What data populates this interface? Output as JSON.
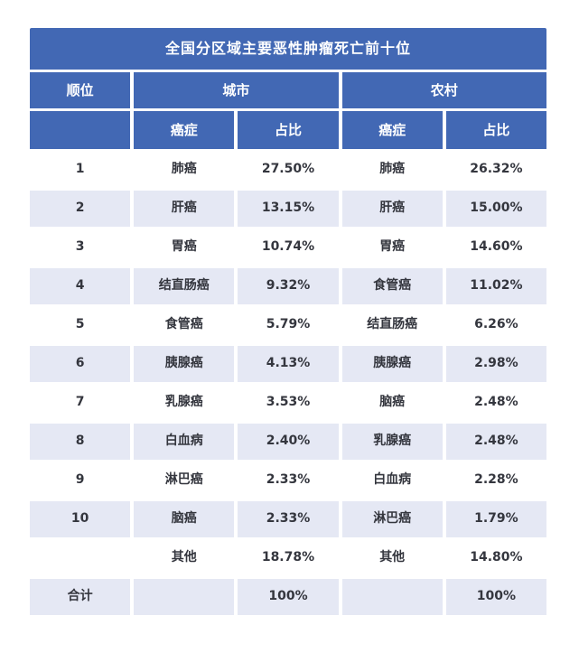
{
  "colors": {
    "page_bg": "#ffffff",
    "header_bg": "#4268b4",
    "header_text": "#ffffff",
    "row_white_bg": "#ffffff",
    "row_shaded_bg": "#e5e8f4",
    "data_text": "#34363e"
  },
  "table": {
    "headers": {
      "rank": "顺位",
      "urban": "城市",
      "rural": "农村",
      "cancer": "癌症",
      "share": "占比"
    }
  },
  "chart_data": {
    "type": "table",
    "title": "全国分区域主要恶性肿瘤死亡前十位",
    "column_groups": [
      "顺位",
      "城市",
      "农村"
    ],
    "columns": [
      "顺位",
      "城市-癌症",
      "城市-占比",
      "农村-癌症",
      "农村-占比"
    ],
    "rows": [
      [
        "1",
        "肺癌",
        "27.50%",
        "肺癌",
        "26.32%"
      ],
      [
        "2",
        "肝癌",
        "13.15%",
        "肝癌",
        "15.00%"
      ],
      [
        "3",
        "胃癌",
        "10.74%",
        "胃癌",
        "14.60%"
      ],
      [
        "4",
        "结直肠癌",
        "9.32%",
        "食管癌",
        "11.02%"
      ],
      [
        "5",
        "食管癌",
        "5.79%",
        "结直肠癌",
        "6.26%"
      ],
      [
        "6",
        "胰腺癌",
        "4.13%",
        "胰腺癌",
        "2.98%"
      ],
      [
        "7",
        "乳腺癌",
        "3.53%",
        "脑癌",
        "2.48%"
      ],
      [
        "8",
        "白血病",
        "2.40%",
        "乳腺癌",
        "2.48%"
      ],
      [
        "9",
        "淋巴癌",
        "2.33%",
        "白血病",
        "2.28%"
      ],
      [
        "10",
        "脑癌",
        "2.33%",
        "淋巴癌",
        "1.79%"
      ],
      [
        "",
        "其他",
        "18.78%",
        "其他",
        "14.80%"
      ],
      [
        "合计",
        "",
        "100%",
        "",
        "100%"
      ]
    ]
  }
}
